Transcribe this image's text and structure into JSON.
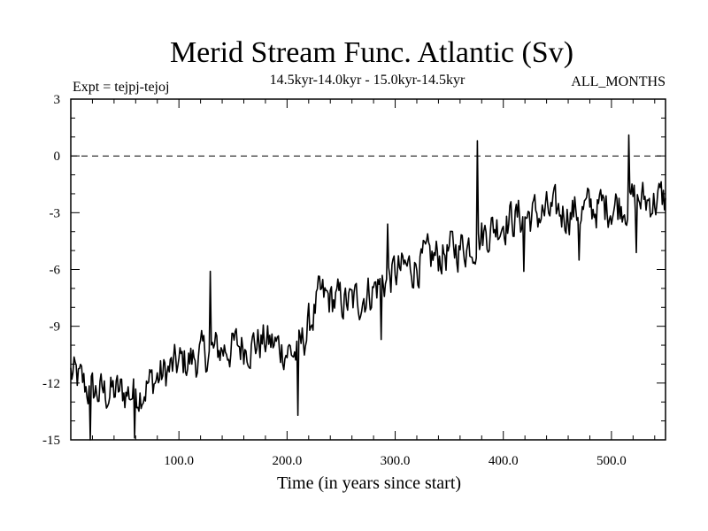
{
  "chart_data": {
    "type": "line",
    "title": "Merid Stream Func. Atlantic (Sv)",
    "subtitle": "14.5kyr-14.0kyr - 15.0kyr-14.5kyr",
    "left_label": "Expt = tejpj-tejoj",
    "right_label": "ALL_MONTHS",
    "xlabel": "Time (in years since start)",
    "ylabel": "",
    "xlim": [
      0,
      550
    ],
    "ylim": [
      -15,
      3
    ],
    "x_ticks": [
      100,
      200,
      300,
      400,
      500
    ],
    "x_tick_labels": [
      "100.0",
      "200.0",
      "300.0",
      "400.0",
      "500.0"
    ],
    "y_ticks": [
      3,
      0,
      -3,
      -6,
      -9,
      -12,
      -15
    ],
    "y_tick_labels": [
      "3",
      "0",
      "-3",
      "-6",
      "-9",
      "-12",
      "-15"
    ],
    "reference_line": {
      "y": 0,
      "style": "dashed"
    },
    "trend_points": {
      "x": [
        0,
        20,
        60,
        100,
        140,
        180,
        210,
        230,
        260,
        300,
        340,
        370,
        400,
        430,
        470,
        520,
        550
      ],
      "y": [
        -11.5,
        -12.5,
        -12.5,
        -11.0,
        -10.2,
        -9.8,
        -10.5,
        -7.5,
        -7.8,
        -6.2,
        -5.3,
        -4.6,
        -3.4,
        -3.1,
        -2.9,
        -2.4,
        -2.3
      ]
    },
    "spikes": [
      {
        "x": 18,
        "y": -15.0
      },
      {
        "x": 59,
        "y": -14.9
      },
      {
        "x": 129,
        "y": -6.1
      },
      {
        "x": 210,
        "y": -13.7
      },
      {
        "x": 287,
        "y": -9.7
      },
      {
        "x": 293,
        "y": -3.6
      },
      {
        "x": 376,
        "y": 0.8
      },
      {
        "x": 419,
        "y": -6.1
      },
      {
        "x": 470,
        "y": -5.5
      },
      {
        "x": 516,
        "y": 1.1
      },
      {
        "x": 523,
        "y": -5.1
      }
    ],
    "noise_amplitude": 1.1,
    "n_points": 550
  }
}
